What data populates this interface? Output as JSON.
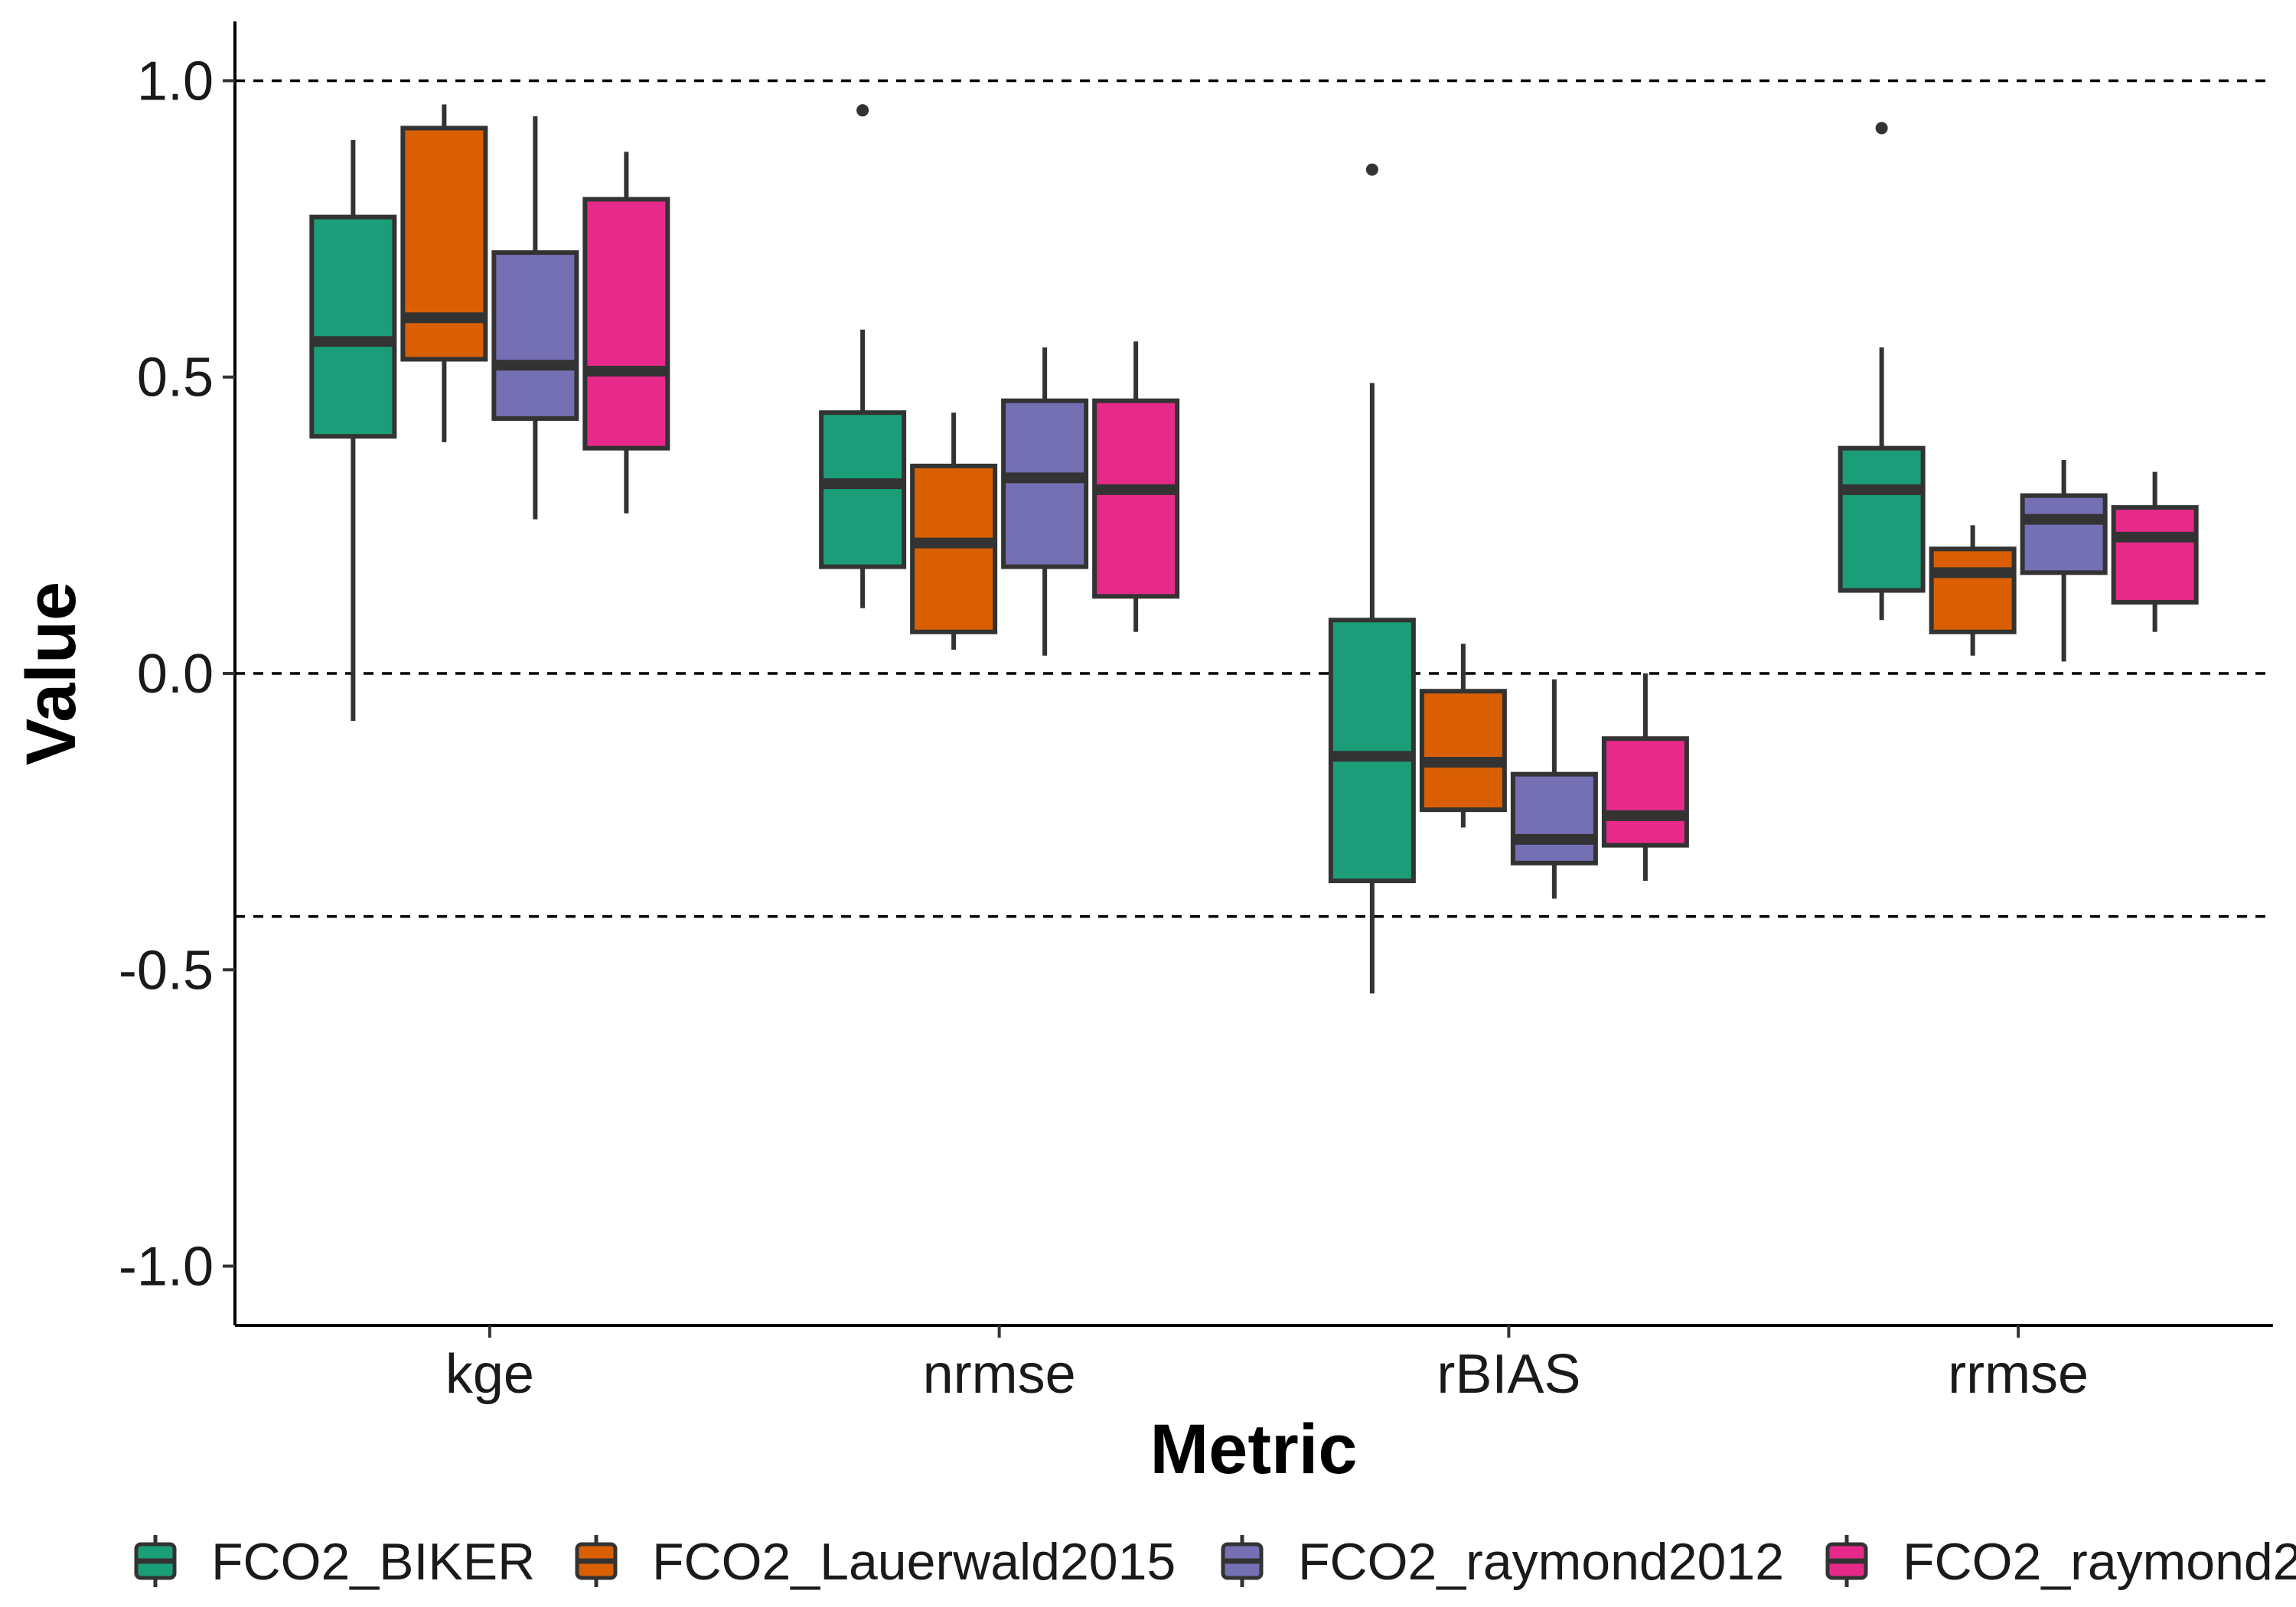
{
  "chart_data": {
    "type": "boxplot",
    "xlabel": "Metric",
    "ylabel": "Value",
    "ylim": [
      -1.1,
      1.1
    ],
    "yticks": [
      1.0,
      0.5,
      0.0,
      -0.5,
      -1.0
    ],
    "ytick_labels": [
      "1.0",
      "0.5",
      "0.0",
      "-0.5",
      "-1.0"
    ],
    "categories": [
      "kge",
      "nrmse",
      "rBIAS",
      "rrmse"
    ],
    "reference_lines": [
      1.0,
      0.0,
      -0.41
    ],
    "legend_position": "bottom",
    "series": [
      {
        "name": "FCO2_BIKER",
        "color": "#1b9e77",
        "boxes": [
          {
            "min": -0.08,
            "q1": 0.4,
            "median": 0.56,
            "q3": 0.77,
            "max": 0.9,
            "outliers": []
          },
          {
            "min": 0.11,
            "q1": 0.18,
            "median": 0.32,
            "q3": 0.44,
            "max": 0.58,
            "outliers": [
              0.95
            ]
          },
          {
            "min": -0.54,
            "q1": -0.35,
            "median": -0.14,
            "q3": 0.09,
            "max": 0.49,
            "outliers": [
              0.85
            ]
          },
          {
            "min": 0.09,
            "q1": 0.14,
            "median": 0.31,
            "q3": 0.38,
            "max": 0.55,
            "outliers": [
              0.92
            ]
          }
        ]
      },
      {
        "name": "FCO2_Lauerwald2015",
        "color": "#d95f02",
        "boxes": [
          {
            "min": 0.39,
            "q1": 0.53,
            "median": 0.6,
            "q3": 0.92,
            "max": 0.96,
            "outliers": []
          },
          {
            "min": 0.04,
            "q1": 0.07,
            "median": 0.22,
            "q3": 0.35,
            "max": 0.44,
            "outliers": []
          },
          {
            "min": -0.26,
            "q1": -0.23,
            "median": -0.15,
            "q3": -0.03,
            "max": 0.05,
            "outliers": []
          },
          {
            "min": 0.03,
            "q1": 0.07,
            "median": 0.17,
            "q3": 0.21,
            "max": 0.25,
            "outliers": []
          }
        ]
      },
      {
        "name": "FCO2_raymond2012",
        "color": "#7570b3",
        "boxes": [
          {
            "min": 0.26,
            "q1": 0.43,
            "median": 0.52,
            "q3": 0.71,
            "max": 0.94,
            "outliers": []
          },
          {
            "min": 0.03,
            "q1": 0.18,
            "median": 0.33,
            "q3": 0.46,
            "max": 0.55,
            "outliers": []
          },
          {
            "min": -0.38,
            "q1": -0.32,
            "median": -0.28,
            "q3": -0.17,
            "max": -0.01,
            "outliers": []
          },
          {
            "min": 0.02,
            "q1": 0.17,
            "median": 0.26,
            "q3": 0.3,
            "max": 0.36,
            "outliers": []
          }
        ]
      },
      {
        "name": "FCO2_raymond2",
        "color": "#e7298a",
        "boxes": [
          {
            "min": 0.27,
            "q1": 0.38,
            "median": 0.51,
            "q3": 0.8,
            "max": 0.88,
            "outliers": []
          },
          {
            "min": 0.07,
            "q1": 0.13,
            "median": 0.31,
            "q3": 0.46,
            "max": 0.56,
            "outliers": []
          },
          {
            "min": -0.35,
            "q1": -0.29,
            "median": -0.24,
            "q3": -0.11,
            "max": 0.0,
            "outliers": []
          },
          {
            "min": 0.07,
            "q1": 0.12,
            "median": 0.23,
            "q3": 0.28,
            "max": 0.34,
            "outliers": []
          }
        ]
      }
    ]
  }
}
